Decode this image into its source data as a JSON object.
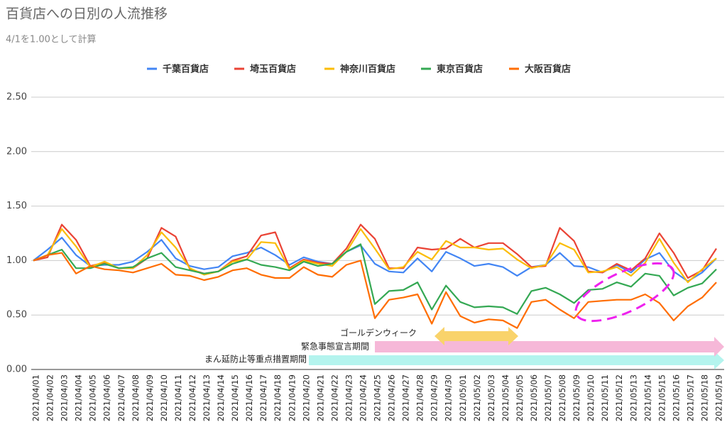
{
  "chart_data": {
    "type": "line",
    "title": "百貨店への日別の人流推移",
    "subtitle": "4/1を1.00として計算",
    "categories": [
      "2021/04/01",
      "2021/04/02",
      "2021/04/03",
      "2021/04/04",
      "2021/04/05",
      "2021/04/06",
      "2021/04/07",
      "2021/04/08",
      "2021/04/09",
      "2021/04/10",
      "2021/04/11",
      "2021/04/12",
      "2021/04/13",
      "2021/04/14",
      "2021/04/15",
      "2021/04/16",
      "2021/04/17",
      "2021/04/18",
      "2021/04/19",
      "2021/04/20",
      "2021/04/21",
      "2021/04/22",
      "2021/04/23",
      "2021/04/24",
      "2021/04/25",
      "2021/04/26",
      "2021/04/27",
      "2021/04/28",
      "2021/04/29",
      "2021/04/30",
      "2021/05/01",
      "2021/05/02",
      "2021/05/03",
      "2021/05/04",
      "2021/05/05",
      "2021/05/06",
      "2021/05/07",
      "2021/05/08",
      "2021/05/09",
      "2021/05/10",
      "2021/05/11",
      "2021/05/12",
      "2021/05/13",
      "2021/05/14",
      "2021/05/15",
      "2021/05/16",
      "2021/05/17",
      "2021/05/18",
      "2021/05/19"
    ],
    "series": [
      {
        "name": "千葉百貨店",
        "color": "#4285f4",
        "values": [
          1.0,
          1.1,
          1.21,
          1.05,
          0.95,
          0.96,
          0.96,
          0.99,
          1.08,
          1.19,
          1.02,
          0.95,
          0.92,
          0.94,
          1.04,
          1.07,
          1.12,
          1.05,
          0.96,
          1.03,
          0.99,
          0.97,
          1.08,
          1.14,
          0.97,
          0.9,
          0.89,
          1.02,
          0.9,
          1.08,
          1.02,
          0.95,
          0.97,
          0.94,
          0.86,
          0.94,
          0.96,
          1.07,
          0.95,
          0.94,
          0.89,
          0.96,
          0.89,
          1.01,
          1.07,
          0.9,
          0.81,
          0.89,
          1.02
        ]
      },
      {
        "name": "埼玉百貨店",
        "color": "#ea4335",
        "values": [
          1.0,
          1.03,
          1.33,
          1.19,
          0.95,
          0.98,
          0.93,
          0.93,
          1.02,
          1.3,
          1.22,
          0.92,
          0.88,
          0.9,
          1.0,
          1.04,
          1.23,
          1.26,
          0.93,
          1.01,
          0.98,
          0.97,
          1.11,
          1.33,
          1.2,
          0.93,
          0.93,
          1.12,
          1.1,
          1.11,
          1.2,
          1.12,
          1.16,
          1.16,
          1.06,
          0.94,
          0.95,
          1.3,
          1.18,
          0.9,
          0.89,
          0.97,
          0.91,
          1.02,
          1.25,
          1.07,
          0.84,
          0.91,
          1.11
        ]
      },
      {
        "name": "神奈川百貨店",
        "color": "#fbbc04",
        "values": [
          1.0,
          1.05,
          1.29,
          1.13,
          0.94,
          0.99,
          0.93,
          0.93,
          1.05,
          1.26,
          1.12,
          0.93,
          0.87,
          0.9,
          0.99,
          1.01,
          1.17,
          1.16,
          0.92,
          1.0,
          0.97,
          0.95,
          1.08,
          1.29,
          1.11,
          0.92,
          0.94,
          1.08,
          1.01,
          1.18,
          1.12,
          1.12,
          1.1,
          1.11,
          1.01,
          0.93,
          0.96,
          1.16,
          1.1,
          0.89,
          0.9,
          0.94,
          0.86,
          0.98,
          1.2,
          0.98,
          0.8,
          0.92,
          1.02
        ]
      },
      {
        "name": "東京百貨店",
        "color": "#34a853",
        "values": [
          1.0,
          1.05,
          1.1,
          0.93,
          0.93,
          0.97,
          0.93,
          0.94,
          1.02,
          1.07,
          0.94,
          0.91,
          0.88,
          0.9,
          0.97,
          1.01,
          0.96,
          0.94,
          0.91,
          0.99,
          0.95,
          0.97,
          1.08,
          1.15,
          0.6,
          0.72,
          0.73,
          0.8,
          0.55,
          0.77,
          0.62,
          0.57,
          0.58,
          0.57,
          0.51,
          0.72,
          0.75,
          0.69,
          0.61,
          0.73,
          0.74,
          0.8,
          0.76,
          0.88,
          0.86,
          0.68,
          0.75,
          0.79,
          0.92
        ]
      },
      {
        "name": "大阪百貨店",
        "color": "#ff6d01",
        "values": [
          1.0,
          1.05,
          1.07,
          0.88,
          0.95,
          0.92,
          0.91,
          0.89,
          0.93,
          0.97,
          0.87,
          0.86,
          0.82,
          0.85,
          0.91,
          0.93,
          0.87,
          0.84,
          0.84,
          0.94,
          0.87,
          0.85,
          0.96,
          1.0,
          0.47,
          0.64,
          0.66,
          0.69,
          0.42,
          0.71,
          0.49,
          0.43,
          0.46,
          0.45,
          0.38,
          0.62,
          0.64,
          0.55,
          0.47,
          0.62,
          0.63,
          0.64,
          0.64,
          0.69,
          0.61,
          0.45,
          0.58,
          0.66,
          0.8
        ]
      }
    ],
    "ylim": [
      0,
      2.5
    ],
    "yticks": [
      {
        "value": 0,
        "label": "0.00"
      },
      {
        "value": 0.5,
        "label": "0.50"
      },
      {
        "value": 1,
        "label": "1.00"
      },
      {
        "value": 1.5,
        "label": "1.50"
      },
      {
        "value": 2,
        "label": "2.00"
      },
      {
        "value": 2.5,
        "label": "2.50"
      }
    ],
    "grid": true,
    "legend": "top",
    "annotations": [
      "ゴールデンウィーク",
      "緊急事態宣言期間",
      "まん延防止等重点措置期間"
    ]
  }
}
